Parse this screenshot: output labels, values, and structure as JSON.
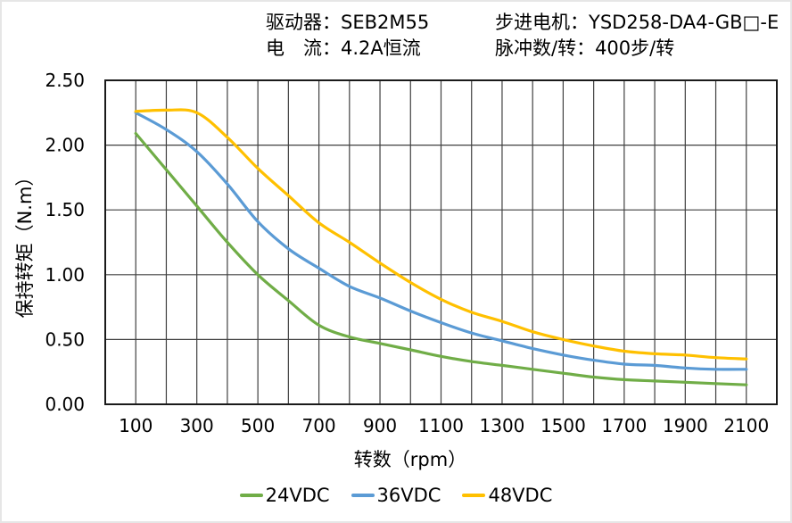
{
  "header": {
    "driver_label": "驱动器：SEB2M55",
    "current_label": "电　流：4.2A恒流",
    "motor_label": "步进电机：YSD258-DA4-GB□-E",
    "pulses_label": "脉冲数/转：400步/转"
  },
  "chart_data": {
    "type": "line",
    "title": "",
    "xlabel": "转数（rpm）",
    "ylabel": "保持转矩（N.m）",
    "xlim": [
      0,
      2200
    ],
    "ylim": [
      0,
      2.5
    ],
    "grid": true,
    "x_grid_step": 100,
    "y_grid_step": 0.5,
    "legend_position": "bottom",
    "xticks": [
      100,
      300,
      500,
      700,
      900,
      1100,
      1300,
      1500,
      1700,
      1900,
      2100
    ],
    "ytick_values": [
      0,
      0.5,
      1.0,
      1.5,
      2.0,
      2.5
    ],
    "ytick_labels": [
      "0.00",
      "0.50",
      "1.00",
      "1.50",
      "2.00",
      "2.50"
    ],
    "x": [
      100,
      200,
      300,
      400,
      500,
      600,
      700,
      800,
      900,
      1000,
      1100,
      1200,
      1300,
      1400,
      1500,
      1600,
      1700,
      1800,
      1900,
      2000,
      2100
    ],
    "series": [
      {
        "name": "24VDC",
        "color": "#70AD47",
        "values": [
          2.09,
          1.81,
          1.53,
          1.25,
          1.0,
          0.8,
          0.61,
          0.52,
          0.47,
          0.42,
          0.37,
          0.33,
          0.3,
          0.27,
          0.24,
          0.21,
          0.19,
          0.18,
          0.17,
          0.16,
          0.15
        ]
      },
      {
        "name": "36VDC",
        "color": "#5B9BD5",
        "values": [
          2.25,
          2.12,
          1.95,
          1.7,
          1.41,
          1.2,
          1.05,
          0.91,
          0.82,
          0.72,
          0.63,
          0.55,
          0.49,
          0.43,
          0.38,
          0.34,
          0.31,
          0.3,
          0.28,
          0.27,
          0.27
        ]
      },
      {
        "name": "48VDC",
        "color": "#FFC000",
        "values": [
          2.26,
          2.27,
          2.25,
          2.06,
          1.82,
          1.61,
          1.4,
          1.25,
          1.09,
          0.94,
          0.81,
          0.71,
          0.64,
          0.56,
          0.5,
          0.45,
          0.41,
          0.39,
          0.38,
          0.36,
          0.35
        ]
      }
    ],
    "axis_color": "#1a1a1a",
    "grid_color": "#404040",
    "tick_font_px": 20
  }
}
